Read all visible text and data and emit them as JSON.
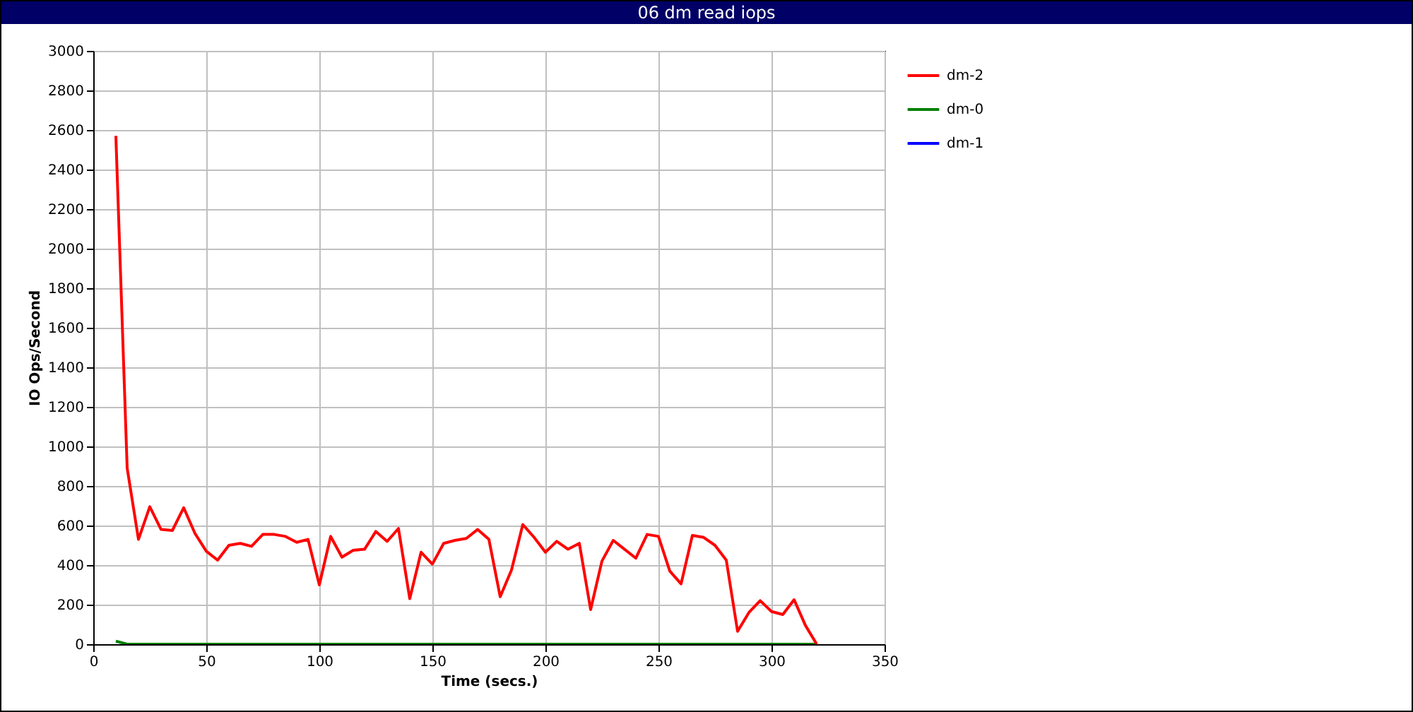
{
  "chart_data": {
    "type": "line",
    "title": "06 dm read iops",
    "xlabel": "Time (secs.)",
    "ylabel": "IO Ops/Second",
    "x": [
      10,
      15,
      20,
      25,
      30,
      35,
      40,
      45,
      50,
      55,
      60,
      65,
      70,
      75,
      80,
      85,
      90,
      95,
      100,
      105,
      110,
      115,
      120,
      125,
      130,
      135,
      140,
      145,
      150,
      155,
      160,
      165,
      170,
      175,
      180,
      185,
      190,
      195,
      200,
      205,
      210,
      215,
      220,
      225,
      230,
      235,
      240,
      245,
      250,
      255,
      260,
      265,
      270,
      275,
      280,
      285,
      290,
      295,
      300,
      305,
      310,
      315,
      320
    ],
    "series": [
      {
        "name": "dm-2",
        "color": "#ff0000",
        "values": [
          2570,
          890,
          530,
          695,
          580,
          575,
          690,
          560,
          470,
          425,
          500,
          510,
          495,
          555,
          555,
          545,
          515,
          530,
          300,
          545,
          440,
          475,
          480,
          570,
          520,
          585,
          230,
          465,
          405,
          510,
          525,
          535,
          580,
          530,
          240,
          375,
          605,
          540,
          465,
          520,
          480,
          510,
          175,
          420,
          525,
          480,
          435,
          555,
          545,
          370,
          305,
          550,
          540,
          500,
          425,
          65,
          160,
          220,
          165,
          150,
          225,
          95,
          0
        ]
      },
      {
        "name": "dm-0",
        "color": "#008000",
        "values": [
          15,
          0,
          0,
          0,
          0,
          0,
          0,
          0,
          0,
          0,
          0,
          0,
          0,
          0,
          0,
          0,
          0,
          0,
          0,
          0,
          0,
          0,
          0,
          0,
          0,
          0,
          0,
          0,
          0,
          0,
          0,
          0,
          0,
          0,
          0,
          0,
          0,
          0,
          0,
          0,
          0,
          0,
          0,
          0,
          0,
          0,
          0,
          0,
          0,
          0,
          0,
          0,
          0,
          0,
          0,
          0,
          0,
          0,
          0,
          0,
          0,
          0,
          0
        ]
      },
      {
        "name": "dm-1",
        "color": "#0000ff",
        "values": [
          null,
          null,
          null,
          null,
          null,
          null,
          null,
          null,
          null,
          null,
          null,
          null,
          null,
          null,
          null,
          null,
          null,
          null,
          null,
          null,
          null,
          null,
          null,
          null,
          null,
          null,
          null,
          null,
          null,
          null,
          null,
          null,
          null,
          null,
          null,
          null,
          null,
          null,
          null,
          null,
          null,
          null,
          null,
          null,
          null,
          null,
          null,
          null,
          null,
          null,
          null,
          null,
          null,
          null,
          null,
          null,
          null,
          null,
          null,
          null,
          null,
          null,
          null
        ]
      }
    ],
    "xlim": [
      0,
      350
    ],
    "xticks": [
      0,
      50,
      100,
      150,
      200,
      250,
      300,
      350
    ],
    "ylim": [
      0,
      3000
    ],
    "yticks": [
      0,
      200,
      400,
      600,
      800,
      1000,
      1200,
      1400,
      1600,
      1800,
      2000,
      2200,
      2400,
      2600,
      2800,
      3000
    ],
    "grid": true,
    "legend": "right",
    "marker": "none",
    "line_style": "solid"
  }
}
